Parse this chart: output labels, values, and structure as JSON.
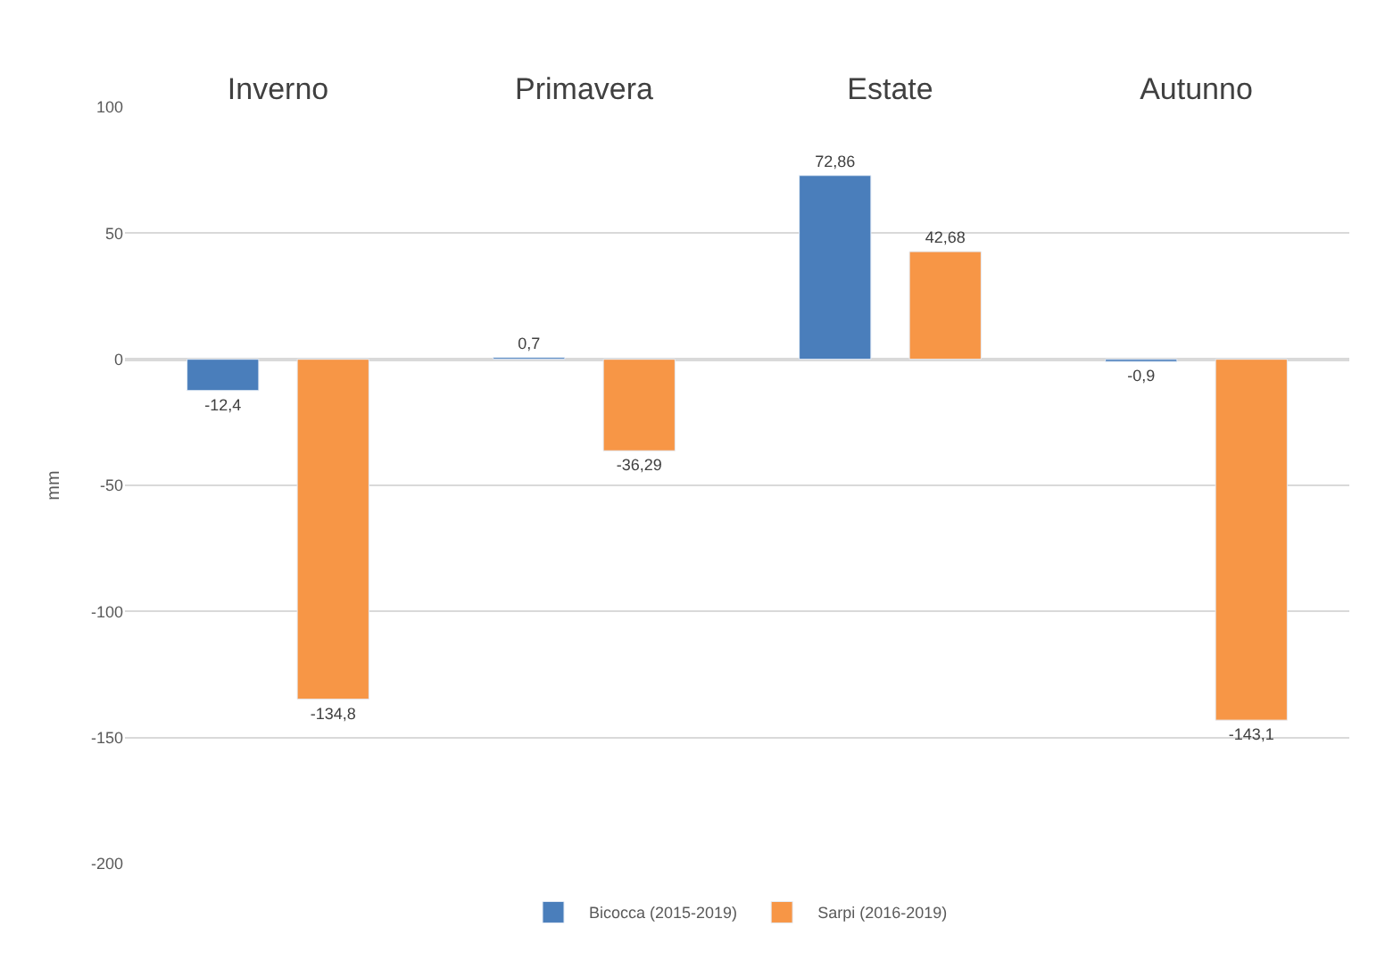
{
  "chart_data": {
    "type": "bar",
    "ylabel": "mm",
    "categories": [
      "Inverno",
      "Primavera",
      "Estate",
      "Autunno"
    ],
    "series": [
      {
        "name": "Bicocca (2015-2019)",
        "color": "#4a7ebb",
        "values": [
          -12.4,
          0.7,
          72.86,
          -0.9
        ],
        "value_labels": [
          "-12,4",
          "0,7",
          "72,86",
          "-0,9"
        ]
      },
      {
        "name": "Sarpi (2016-2019)",
        "color": "#f79646",
        "values": [
          -134.8,
          -36.29,
          42.68,
          -143.1
        ],
        "value_labels": [
          "-134,8",
          "-36,29",
          "42,68",
          "-143,1"
        ]
      }
    ],
    "ylim": [
      -200,
      100
    ],
    "yticks": [
      -200,
      -150,
      -100,
      -50,
      0,
      50,
      100
    ],
    "grid": "y",
    "legend": "bottom"
  }
}
